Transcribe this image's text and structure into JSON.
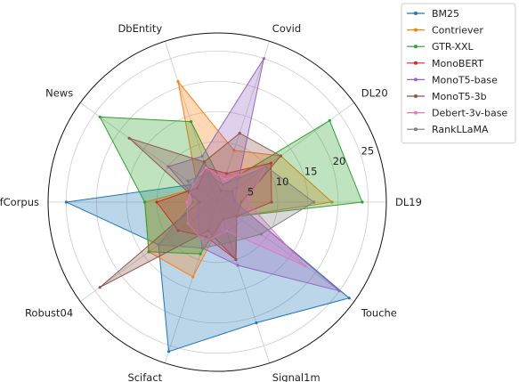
{
  "chart_data": {
    "type": "radar",
    "axes": [
      "DL19",
      "DL20",
      "Covid",
      "DbEntity",
      "News",
      "NfCorpus",
      "Robust04",
      "Scifact",
      "Signal1m",
      "Touche"
    ],
    "rlim": [
      0,
      28
    ],
    "rticks": [
      5,
      10,
      15,
      20,
      25
    ],
    "grid": true,
    "legend": "top-right",
    "series": [
      {
        "name": "BM25",
        "color": "#1f77b4",
        "values": [
          3,
          3,
          2,
          7,
          5,
          25,
          12,
          26,
          21,
          27
        ]
      },
      {
        "name": "Contriever",
        "color": "#ff7f0e",
        "values": [
          19,
          13,
          9,
          21,
          4,
          12,
          14,
          13,
          3,
          4
        ]
      },
      {
        "name": "GTR-XXL",
        "color": "#2ca02c",
        "values": [
          24,
          23,
          3,
          14,
          24,
          12,
          14,
          9,
          3,
          4
        ]
      },
      {
        "name": "MonoBERT",
        "color": "#d62728",
        "values": [
          9,
          11,
          5,
          6,
          4,
          10,
          8,
          6,
          10,
          4
        ]
      },
      {
        "name": "MonoT5-base",
        "color": "#9467bd",
        "values": [
          3,
          4,
          25,
          8,
          10,
          3,
          4,
          8,
          11,
          25
        ]
      },
      {
        "name": "MonoT5-3b",
        "color": "#8c564b",
        "values": [
          4,
          13,
          12,
          7,
          18,
          3,
          24,
          5,
          10,
          4
        ]
      },
      {
        "name": "Debert-3v-base",
        "color": "#e377c2",
        "values": [
          5,
          10,
          4,
          6,
          5,
          5,
          6,
          7,
          5,
          18
        ]
      },
      {
        "name": "RankLLaMA",
        "color": "#7f7f7f",
        "values": [
          16,
          10,
          3,
          5,
          6,
          4,
          12,
          8,
          7,
          9
        ]
      }
    ]
  }
}
